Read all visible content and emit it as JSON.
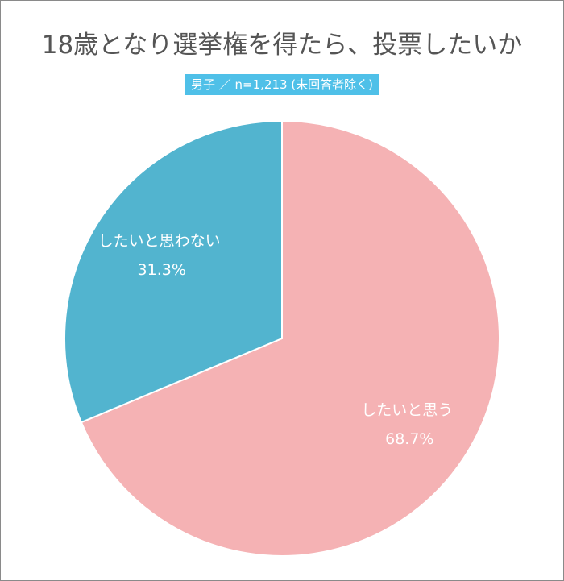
{
  "chart_data": {
    "type": "pie",
    "title": "18歳となり選挙権を得たら、投票したいか",
    "subtitle": "男子 ／ n=1,213 (未回答者除く)",
    "slices": [
      {
        "label": "したいと思う",
        "value": 68.7,
        "value_label": "68.7%",
        "color": "#f5b2b4"
      },
      {
        "label": "したいと思わない",
        "value": 31.3,
        "value_label": "31.3%",
        "color": "#52b4cf"
      }
    ],
    "start_angle_deg": 0,
    "direction": "clockwise",
    "legend": "none"
  }
}
